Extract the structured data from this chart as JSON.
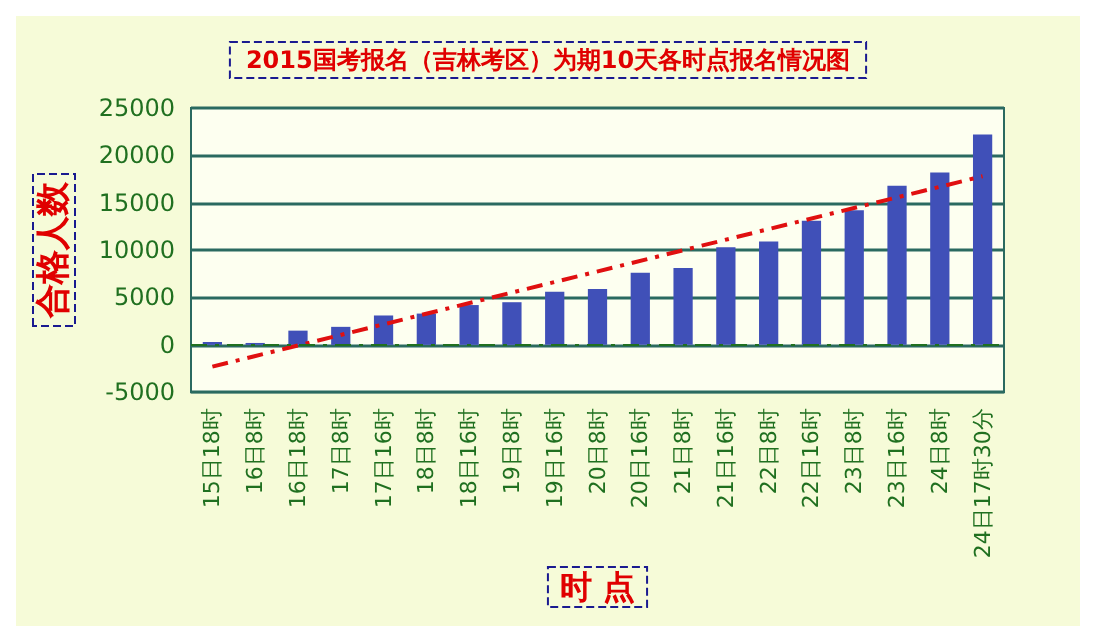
{
  "chart_data": {
    "type": "bar",
    "title": "2015国考报名（吉林考区）为期10天各时点报名情况图",
    "xlabel": "时 点",
    "ylabel": "合格人数",
    "categories": [
      "15日18时",
      "16日8时",
      "16日18时",
      "17日8时",
      "17日16时",
      "18日8时",
      "18日16时",
      "19日8时",
      "19日16时",
      "20日8时",
      "20日16时",
      "21日8时",
      "21日16时",
      "22日8时",
      "22日16时",
      "23日8时",
      "23日16时",
      "24日8时",
      "24日17时30分"
    ],
    "series": [
      {
        "color": "#4050b8",
        "values": [
          300,
          200,
          1500,
          1900,
          3100,
          3300,
          4200,
          4500,
          5600,
          5900,
          7600,
          8100,
          10300,
          10900,
          13100,
          14200,
          16800,
          18200,
          22200
        ]
      },
      {
        "type": "line",
        "color": "#e01010",
        "line_style": "dashed",
        "marker": "none",
        "values": [
          -2300,
          null,
          null,
          null,
          null,
          null,
          null,
          null,
          null,
          null,
          null,
          null,
          null,
          null,
          null,
          null,
          null,
          null,
          17800
        ]
      }
    ],
    "ylim": [
      -5000,
      25000
    ],
    "yticks": [
      -5000,
      0,
      5000,
      10000,
      15000,
      20000,
      25000
    ],
    "grid": "y",
    "ref_lines": [
      {
        "axis": "y",
        "value": 0,
        "color": "#207020",
        "line_style": "dashed"
      }
    ]
  }
}
